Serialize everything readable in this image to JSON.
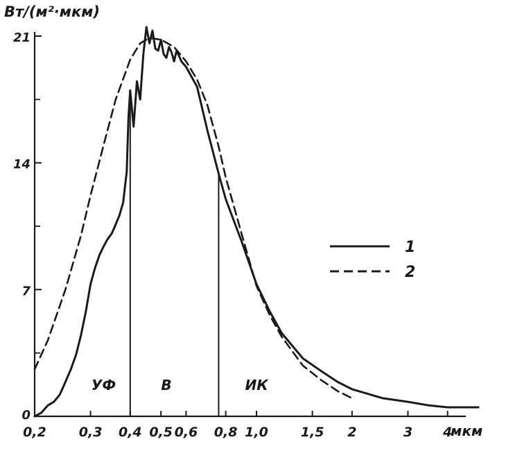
{
  "chart_data": {
    "type": "line",
    "ylabel": "Вт/(м²·мкм)",
    "xunit": "мкм",
    "x_scale": "log",
    "xlim": [
      0.2,
      5.0
    ],
    "ylim": [
      0,
      21
    ],
    "ytick_labels": [
      "0",
      "7",
      "14",
      "21"
    ],
    "yticks": [
      0,
      7,
      14,
      21
    ],
    "xticks": [
      0.2,
      0.3,
      0.4,
      0.5,
      0.6,
      0.8,
      1.0,
      1.5,
      2,
      3,
      4
    ],
    "xtick_labels": [
      "0,2",
      "0,3",
      "0,4",
      "0,5",
      "0,6",
      "0,8",
      "1,0",
      "1,5",
      "2",
      "3",
      "4"
    ],
    "band_boundaries": [
      0.4,
      0.76
    ],
    "band_labels": [
      "УФ",
      "В",
      "ИК"
    ],
    "band_label_x": [
      0.33,
      0.52,
      1.0
    ],
    "legend_position": "right",
    "series": [
      {
        "name": "1",
        "style": "solid",
        "x": [
          0.2,
          0.21,
          0.22,
          0.23,
          0.24,
          0.25,
          0.26,
          0.27,
          0.28,
          0.29,
          0.3,
          0.31,
          0.32,
          0.33,
          0.34,
          0.35,
          0.36,
          0.37,
          0.38,
          0.39,
          0.395,
          0.4,
          0.41,
          0.42,
          0.43,
          0.44,
          0.45,
          0.46,
          0.47,
          0.48,
          0.49,
          0.5,
          0.51,
          0.52,
          0.53,
          0.54,
          0.55,
          0.56,
          0.58,
          0.6,
          0.65,
          0.7,
          0.76,
          0.8,
          0.9,
          1.0,
          1.1,
          1.2,
          1.4,
          1.6,
          1.8,
          2.0,
          2.5,
          3.0,
          3.5,
          4.0,
          5.0
        ],
        "y": [
          0,
          0.2,
          0.6,
          0.8,
          1.2,
          1.9,
          2.6,
          3.4,
          4.5,
          5.8,
          7.3,
          8.2,
          8.9,
          9.4,
          9.8,
          10.1,
          10.6,
          11.1,
          11.8,
          13.5,
          16.5,
          18.0,
          16.0,
          18.5,
          17.5,
          20.0,
          21.5,
          20.6,
          21.3,
          20.3,
          20.2,
          20.8,
          20.0,
          19.8,
          20.4,
          20.1,
          19.6,
          20.2,
          19.6,
          19.3,
          18.2,
          15.8,
          13.4,
          12.0,
          9.6,
          7.3,
          5.8,
          4.6,
          3.2,
          2.5,
          1.9,
          1.5,
          1.0,
          0.8,
          0.6,
          0.5,
          0.5
        ]
      },
      {
        "name": "2",
        "style": "dashed",
        "x": [
          0.2,
          0.22,
          0.25,
          0.28,
          0.3,
          0.33,
          0.36,
          0.4,
          0.43,
          0.46,
          0.5,
          0.55,
          0.6,
          0.65,
          0.7,
          0.76,
          0.8,
          0.9,
          1.0,
          1.1,
          1.2,
          1.4,
          1.6,
          1.8,
          2.0
        ],
        "y": [
          2.6,
          4.2,
          7.0,
          10.0,
          12.2,
          15.0,
          17.5,
          19.7,
          20.6,
          20.9,
          20.8,
          20.4,
          19.6,
          18.6,
          17.2,
          14.9,
          13.2,
          10.0,
          7.2,
          5.6,
          4.4,
          2.8,
          2.0,
          1.4,
          1.0
        ]
      }
    ]
  }
}
